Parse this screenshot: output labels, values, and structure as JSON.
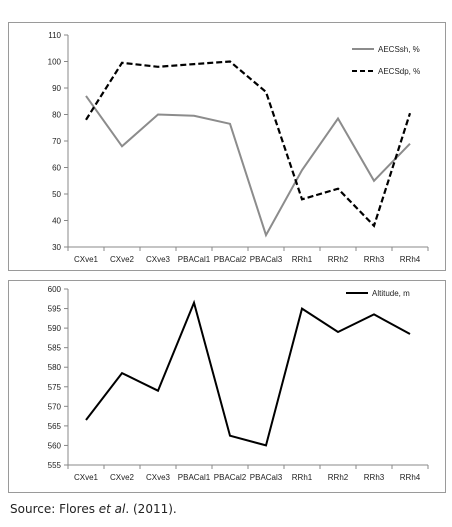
{
  "source_note": {
    "prefix": "Source: Flores ",
    "italic": "et al",
    "suffix": ". (2011)."
  },
  "chart_data": [
    {
      "type": "line",
      "categories": [
        "CXve1",
        "CXve2",
        "CXve3",
        "PBACal1",
        "PBACal2",
        "PBACal3",
        "RRh1",
        "RRh2",
        "RRh3",
        "RRh4"
      ],
      "ylim": [
        30,
        110
      ],
      "yticks": [
        30,
        40,
        50,
        60,
        70,
        80,
        90,
        100,
        110
      ],
      "grid": false,
      "legend": "top-right",
      "series": [
        {
          "name": "AECSsh, %",
          "style": "solid",
          "color": "#8c8c8c",
          "values": [
            87,
            68,
            80,
            79.5,
            76.5,
            34.5,
            59,
            78.5,
            55,
            69
          ]
        },
        {
          "name": "AECSdp, %",
          "style": "dashed",
          "color": "#000000",
          "values": [
            78,
            99.5,
            98,
            99,
            100,
            88.5,
            48,
            52,
            38,
            80.5
          ]
        }
      ]
    },
    {
      "type": "line",
      "categories": [
        "CXve1",
        "CXve2",
        "CXve3",
        "PBACal1",
        "PBACal2",
        "PBACal3",
        "RRh1",
        "RRh2",
        "RRh3",
        "RRh4"
      ],
      "ylim": [
        555,
        600
      ],
      "yticks": [
        555,
        560,
        565,
        570,
        575,
        580,
        585,
        590,
        595,
        600
      ],
      "grid": false,
      "legend": "top-right",
      "series": [
        {
          "name": "Altitude, m",
          "style": "solid",
          "color": "#000000",
          "values": [
            566.5,
            578.5,
            574,
            596.5,
            562.5,
            560,
            595,
            589,
            593.5,
            588.5
          ]
        }
      ]
    }
  ]
}
